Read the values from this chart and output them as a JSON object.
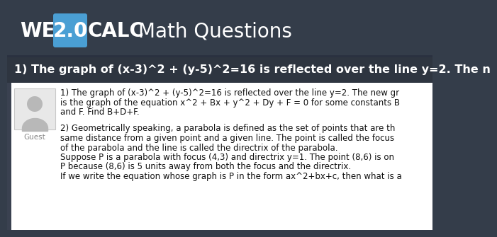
{
  "header_bg": "#343d4a",
  "header_text_web": "WEB",
  "header_text_20": "2.0",
  "header_text_calc": "CALC",
  "header_text_title": "Math Questions",
  "header_box_color": "#4a9fd4",
  "banner_bg": "#2e3540",
  "banner_text": "1) The graph of (x-3)^2 + (y-5)^2=16 is reflected over the line y=2. The n",
  "banner_text_color": "#ffffff",
  "content_bg": "#ffffff",
  "avatar_bg": "#e0e0e0",
  "guest_label": "Guest",
  "para1_line1": "1) The graph of (x-3)^2 + (y-5)^2=16 is reflected over the line y=2. The new gr",
  "para1_line2": "is the graph of the equation x^2 + Bx + y^2 + Dy + F = 0 for some constants B",
  "para1_line3": "and F. Find B+D+F.",
  "para2_line1": "2) Geometrically speaking, a parabola is defined as the set of points that are th",
  "para2_line2": "same distance from a given point and a given line. The point is called the focus",
  "para2_line3": "of the parabola and the line is called the directrix of the parabola.",
  "para2_line4": "Suppose P is a parabola with focus (4,3) and directrix y=1. The point (8,6) is on",
  "para2_line5": "P because (8,6) is 5 units away from both the focus and the directrix.",
  "para2_line6": "If we write the equation whose graph is P in the form ax^2+bx+c, then what is a"
}
